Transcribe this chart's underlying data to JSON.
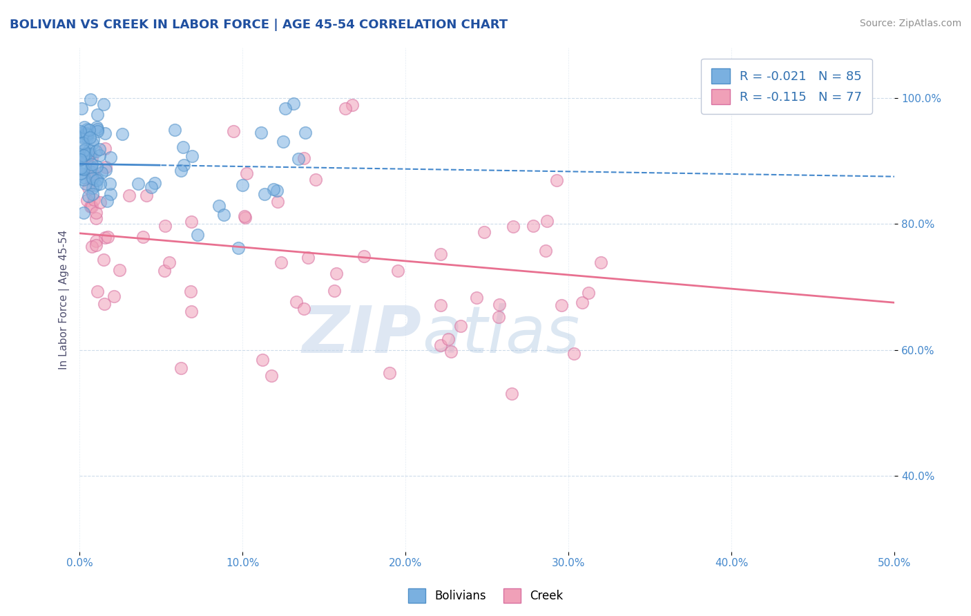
{
  "title": "BOLIVIAN VS CREEK IN LABOR FORCE | AGE 45-54 CORRELATION CHART",
  "source": "Source: ZipAtlas.com",
  "ylabel": "In Labor Force | Age 45-54",
  "xlim": [
    0.0,
    50.0
  ],
  "ylim": [
    28.0,
    108.0
  ],
  "xticks": [
    0.0,
    10.0,
    20.0,
    30.0,
    40.0,
    50.0
  ],
  "yticks": [
    40.0,
    60.0,
    80.0,
    100.0
  ],
  "xticklabels": [
    "0.0%",
    "10.0%",
    "20.0%",
    "30.0%",
    "40.0%",
    "50.0%"
  ],
  "yticklabels": [
    "40.0%",
    "60.0%",
    "80.0%",
    "100.0%"
  ],
  "bolivians_color": "#7ab0e0",
  "bolivians_edge": "#5090c8",
  "creek_color": "#f0a0b8",
  "creek_edge": "#d870a0",
  "trend_blue_color": "#4488cc",
  "trend_pink_color": "#e87090",
  "watermark_zip": "ZIP",
  "watermark_atlas": "atlas",
  "background_color": "#ffffff",
  "grid_color": "#c8d8e8",
  "title_color": "#2050a0",
  "tick_color": "#4488cc",
  "legend_label1": "R = -0.021   N = 85",
  "legend_label2": "R = -0.115   N = 77",
  "bottom_label1": "Bolivians",
  "bottom_label2": "Creek",
  "trend_blue_y0": 89.5,
  "trend_blue_y1": 87.5,
  "trend_pink_y0": 78.5,
  "trend_pink_y1": 67.5,
  "trend_solid_end": 5.0
}
